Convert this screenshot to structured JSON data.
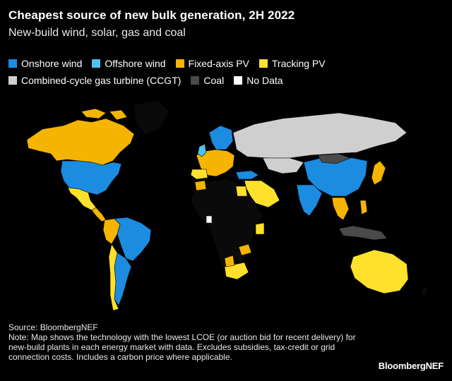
{
  "title": "Cheapest source of new bulk generation, 2H 2022",
  "subtitle": "New-build wind, solar, gas and coal",
  "legend": [
    {
      "label": "Onshore wind",
      "color": "#1b8ce0"
    },
    {
      "label": "Offshore wind",
      "color": "#4fc3f0"
    },
    {
      "label": "Fixed-axis PV",
      "color": "#f5b400"
    },
    {
      "label": "Tracking PV",
      "color": "#ffe12b"
    },
    {
      "label": "Combined-cycle gas turbine (CCGT)",
      "color": "#cfcfcf"
    },
    {
      "label": "Coal",
      "color": "#4a4a4a"
    },
    {
      "label": "No Data",
      "color": "#ffffff"
    }
  ],
  "regions": [
    {
      "name": "Canada",
      "category": "Fixed-axis PV"
    },
    {
      "name": "United States",
      "category": "Onshore wind"
    },
    {
      "name": "Mexico",
      "category": "Tracking PV"
    },
    {
      "name": "Brazil",
      "category": "Onshore wind"
    },
    {
      "name": "Chile",
      "category": "Tracking PV"
    },
    {
      "name": "Argentina",
      "category": "Onshore wind"
    },
    {
      "name": "Russia",
      "category": "Combined-cycle gas turbine (CCGT)"
    },
    {
      "name": "China",
      "category": "Onshore wind"
    },
    {
      "name": "India",
      "category": "Onshore wind"
    },
    {
      "name": "Japan",
      "category": "Fixed-axis PV"
    },
    {
      "name": "Australia",
      "category": "Tracking PV"
    },
    {
      "name": "South Africa",
      "category": "Tracking PV"
    },
    {
      "name": "Indonesia",
      "category": "Coal"
    },
    {
      "name": "Kazakhstan",
      "category": "Combined-cycle gas turbine (CCGT)"
    }
  ],
  "notes": {
    "source": "Source: BloombergNEF",
    "note": "Note: Map shows the technology with the lowest LCOE (or auction bid for recent delivery) for new-build plants in each energy market with data. Excludes subsidies, tax-credit or grid connection costs. Includes a carbon price where applicable."
  },
  "brand": "BloombergNEF"
}
